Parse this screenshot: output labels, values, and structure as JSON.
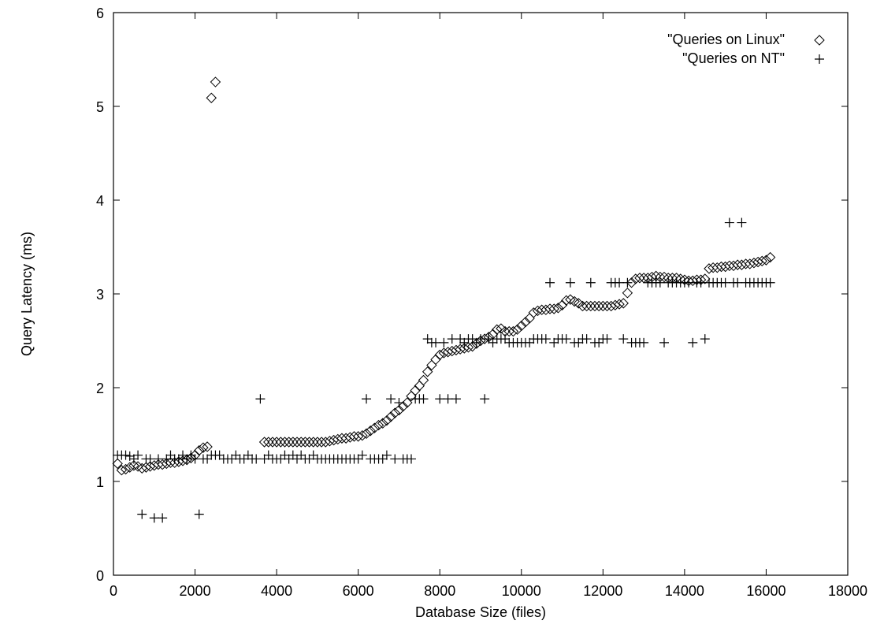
{
  "chart_data": {
    "type": "scatter",
    "xlabel": "Database Size (files)",
    "ylabel": "Query Latency (ms)",
    "xlim": [
      0,
      18000
    ],
    "ylim": [
      0,
      6
    ],
    "x_ticks": [
      "0",
      "2000",
      "4000",
      "6000",
      "8000",
      "10000",
      "12000",
      "14000",
      "16000",
      "18000"
    ],
    "y_ticks": [
      "0",
      "1",
      "2",
      "3",
      "4",
      "5",
      "6"
    ],
    "grid": false,
    "legend_position": "top-right",
    "series": [
      {
        "name": "\"Queries on Linux\"",
        "marker": "diamond",
        "color": "#000000",
        "points": [
          [
            100,
            1.19
          ],
          [
            200,
            1.12
          ],
          [
            300,
            1.13
          ],
          [
            400,
            1.15
          ],
          [
            500,
            1.17
          ],
          [
            600,
            1.16
          ],
          [
            700,
            1.14
          ],
          [
            800,
            1.15
          ],
          [
            900,
            1.16
          ],
          [
            1000,
            1.17
          ],
          [
            1100,
            1.18
          ],
          [
            1200,
            1.18
          ],
          [
            1300,
            1.19
          ],
          [
            1400,
            1.2
          ],
          [
            1500,
            1.2
          ],
          [
            1600,
            1.21
          ],
          [
            1700,
            1.22
          ],
          [
            1800,
            1.23
          ],
          [
            1900,
            1.25
          ],
          [
            2000,
            1.28
          ],
          [
            2100,
            1.33
          ],
          [
            2200,
            1.36
          ],
          [
            2300,
            1.37
          ],
          [
            2400,
            5.09
          ],
          [
            2500,
            5.26
          ],
          [
            3700,
            1.42
          ],
          [
            3800,
            1.42
          ],
          [
            3900,
            1.42
          ],
          [
            4000,
            1.42
          ],
          [
            4100,
            1.42
          ],
          [
            4200,
            1.42
          ],
          [
            4300,
            1.42
          ],
          [
            4400,
            1.42
          ],
          [
            4500,
            1.42
          ],
          [
            4600,
            1.42
          ],
          [
            4700,
            1.42
          ],
          [
            4800,
            1.42
          ],
          [
            4900,
            1.42
          ],
          [
            5000,
            1.42
          ],
          [
            5100,
            1.42
          ],
          [
            5200,
            1.42
          ],
          [
            5300,
            1.43
          ],
          [
            5400,
            1.44
          ],
          [
            5500,
            1.45
          ],
          [
            5600,
            1.46
          ],
          [
            5700,
            1.46
          ],
          [
            5800,
            1.47
          ],
          [
            5900,
            1.48
          ],
          [
            6000,
            1.48
          ],
          [
            6100,
            1.49
          ],
          [
            6200,
            1.51
          ],
          [
            6300,
            1.54
          ],
          [
            6400,
            1.57
          ],
          [
            6500,
            1.6
          ],
          [
            6600,
            1.62
          ],
          [
            6700,
            1.65
          ],
          [
            6800,
            1.69
          ],
          [
            6900,
            1.73
          ],
          [
            7000,
            1.76
          ],
          [
            7100,
            1.8
          ],
          [
            7200,
            1.84
          ],
          [
            7300,
            1.91
          ],
          [
            7400,
            1.97
          ],
          [
            7500,
            2.02
          ],
          [
            7600,
            2.08
          ],
          [
            7700,
            2.17
          ],
          [
            7800,
            2.24
          ],
          [
            7900,
            2.3
          ],
          [
            8000,
            2.35
          ],
          [
            8100,
            2.37
          ],
          [
            8200,
            2.38
          ],
          [
            8300,
            2.39
          ],
          [
            8400,
            2.4
          ],
          [
            8500,
            2.41
          ],
          [
            8600,
            2.42
          ],
          [
            8700,
            2.43
          ],
          [
            8800,
            2.44
          ],
          [
            8900,
            2.47
          ],
          [
            9000,
            2.5
          ],
          [
            9100,
            2.52
          ],
          [
            9200,
            2.54
          ],
          [
            9300,
            2.57
          ],
          [
            9400,
            2.62
          ],
          [
            9500,
            2.63
          ],
          [
            9600,
            2.6
          ],
          [
            9700,
            2.6
          ],
          [
            9800,
            2.6
          ],
          [
            9900,
            2.62
          ],
          [
            10000,
            2.66
          ],
          [
            10100,
            2.7
          ],
          [
            10200,
            2.74
          ],
          [
            10300,
            2.8
          ],
          [
            10400,
            2.82
          ],
          [
            10500,
            2.83
          ],
          [
            10600,
            2.83
          ],
          [
            10700,
            2.84
          ],
          [
            10800,
            2.84
          ],
          [
            10900,
            2.85
          ],
          [
            11000,
            2.88
          ],
          [
            11100,
            2.93
          ],
          [
            11200,
            2.94
          ],
          [
            11300,
            2.92
          ],
          [
            11400,
            2.9
          ],
          [
            11500,
            2.87
          ],
          [
            11600,
            2.87
          ],
          [
            11700,
            2.87
          ],
          [
            11800,
            2.87
          ],
          [
            11900,
            2.87
          ],
          [
            12000,
            2.87
          ],
          [
            12100,
            2.87
          ],
          [
            12200,
            2.87
          ],
          [
            12300,
            2.88
          ],
          [
            12400,
            2.89
          ],
          [
            12500,
            2.9
          ],
          [
            12600,
            3.01
          ],
          [
            12700,
            3.12
          ],
          [
            12800,
            3.16
          ],
          [
            12900,
            3.17
          ],
          [
            13000,
            3.17
          ],
          [
            13100,
            3.17
          ],
          [
            13200,
            3.18
          ],
          [
            13300,
            3.19
          ],
          [
            13400,
            3.18
          ],
          [
            13500,
            3.18
          ],
          [
            13600,
            3.17
          ],
          [
            13700,
            3.17
          ],
          [
            13800,
            3.17
          ],
          [
            13900,
            3.16
          ],
          [
            14000,
            3.15
          ],
          [
            14100,
            3.14
          ],
          [
            14200,
            3.14
          ],
          [
            14300,
            3.15
          ],
          [
            14400,
            3.15
          ],
          [
            14500,
            3.16
          ],
          [
            14600,
            3.27
          ],
          [
            14700,
            3.28
          ],
          [
            14800,
            3.28
          ],
          [
            14900,
            3.29
          ],
          [
            15000,
            3.29
          ],
          [
            15100,
            3.3
          ],
          [
            15200,
            3.3
          ],
          [
            15300,
            3.31
          ],
          [
            15400,
            3.31
          ],
          [
            15500,
            3.32
          ],
          [
            15600,
            3.32
          ],
          [
            15700,
            3.33
          ],
          [
            15800,
            3.34
          ],
          [
            15900,
            3.35
          ],
          [
            16000,
            3.36
          ],
          [
            16100,
            3.39
          ]
        ]
      },
      {
        "name": "\"Queries on NT\"",
        "marker": "plus",
        "color": "#000000",
        "points": [
          [
            100,
            1.28
          ],
          [
            200,
            1.28
          ],
          [
            300,
            1.28
          ],
          [
            400,
            1.27
          ],
          [
            500,
            1.24
          ],
          [
            600,
            1.28
          ],
          [
            700,
            0.65
          ],
          [
            800,
            1.24
          ],
          [
            900,
            1.24
          ],
          [
            1000,
            0.61
          ],
          [
            1100,
            1.24
          ],
          [
            1200,
            0.61
          ],
          [
            1300,
            1.24
          ],
          [
            1400,
            1.28
          ],
          [
            1500,
            1.24
          ],
          [
            1600,
            1.24
          ],
          [
            1700,
            1.28
          ],
          [
            1800,
            1.24
          ],
          [
            1900,
            1.28
          ],
          [
            2000,
            1.24
          ],
          [
            2100,
            0.65
          ],
          [
            2200,
            1.24
          ],
          [
            2300,
            1.24
          ],
          [
            2400,
            1.28
          ],
          [
            2500,
            1.28
          ],
          [
            2600,
            1.28
          ],
          [
            2700,
            1.24
          ],
          [
            2800,
            1.24
          ],
          [
            2900,
            1.24
          ],
          [
            3000,
            1.28
          ],
          [
            3100,
            1.24
          ],
          [
            3200,
            1.24
          ],
          [
            3300,
            1.28
          ],
          [
            3400,
            1.24
          ],
          [
            3500,
            1.24
          ],
          [
            3600,
            1.88
          ],
          [
            3700,
            1.24
          ],
          [
            3800,
            1.28
          ],
          [
            3900,
            1.24
          ],
          [
            4000,
            1.24
          ],
          [
            4100,
            1.24
          ],
          [
            4200,
            1.28
          ],
          [
            4300,
            1.24
          ],
          [
            4400,
            1.28
          ],
          [
            4500,
            1.24
          ],
          [
            4600,
            1.28
          ],
          [
            4700,
            1.24
          ],
          [
            4800,
            1.24
          ],
          [
            4900,
            1.28
          ],
          [
            5000,
            1.24
          ],
          [
            5100,
            1.24
          ],
          [
            5200,
            1.24
          ],
          [
            5300,
            1.24
          ],
          [
            5400,
            1.24
          ],
          [
            5500,
            1.24
          ],
          [
            5600,
            1.24
          ],
          [
            5700,
            1.24
          ],
          [
            5800,
            1.24
          ],
          [
            5900,
            1.24
          ],
          [
            6000,
            1.24
          ],
          [
            6100,
            1.28
          ],
          [
            6200,
            1.88
          ],
          [
            6300,
            1.24
          ],
          [
            6400,
            1.24
          ],
          [
            6500,
            1.24
          ],
          [
            6600,
            1.24
          ],
          [
            6700,
            1.28
          ],
          [
            6800,
            1.88
          ],
          [
            6900,
            1.24
          ],
          [
            7000,
            1.84
          ],
          [
            7100,
            1.24
          ],
          [
            7200,
            1.24
          ],
          [
            7300,
            1.24
          ],
          [
            7400,
            1.88
          ],
          [
            7500,
            1.88
          ],
          [
            7600,
            1.88
          ],
          [
            7700,
            2.52
          ],
          [
            7800,
            2.48
          ],
          [
            7900,
            2.48
          ],
          [
            8000,
            1.88
          ],
          [
            8100,
            2.48
          ],
          [
            8200,
            1.88
          ],
          [
            8300,
            2.52
          ],
          [
            8400,
            1.88
          ],
          [
            8500,
            2.52
          ],
          [
            8600,
            2.48
          ],
          [
            8700,
            2.52
          ],
          [
            8800,
            2.52
          ],
          [
            8900,
            2.48
          ],
          [
            9000,
            2.52
          ],
          [
            9100,
            1.88
          ],
          [
            9200,
            2.52
          ],
          [
            9300,
            2.48
          ],
          [
            9400,
            2.52
          ],
          [
            9500,
            2.52
          ],
          [
            9600,
            2.52
          ],
          [
            9700,
            2.48
          ],
          [
            9800,
            2.48
          ],
          [
            9900,
            2.48
          ],
          [
            10000,
            2.48
          ],
          [
            10100,
            2.48
          ],
          [
            10200,
            2.48
          ],
          [
            10300,
            2.52
          ],
          [
            10400,
            2.52
          ],
          [
            10500,
            2.52
          ],
          [
            10600,
            2.52
          ],
          [
            10700,
            3.12
          ],
          [
            10800,
            2.48
          ],
          [
            10900,
            2.52
          ],
          [
            11000,
            2.52
          ],
          [
            11100,
            2.52
          ],
          [
            11200,
            3.12
          ],
          [
            11300,
            2.48
          ],
          [
            11400,
            2.48
          ],
          [
            11500,
            2.52
          ],
          [
            11600,
            2.52
          ],
          [
            11700,
            3.12
          ],
          [
            11800,
            2.48
          ],
          [
            11900,
            2.48
          ],
          [
            12000,
            2.52
          ],
          [
            12100,
            2.52
          ],
          [
            12200,
            3.12
          ],
          [
            12300,
            3.12
          ],
          [
            12400,
            3.12
          ],
          [
            12500,
            2.52
          ],
          [
            12600,
            3.12
          ],
          [
            12700,
            2.48
          ],
          [
            12800,
            2.48
          ],
          [
            12900,
            2.48
          ],
          [
            13000,
            2.48
          ],
          [
            13100,
            3.12
          ],
          [
            13200,
            3.12
          ],
          [
            13300,
            3.12
          ],
          [
            13400,
            3.12
          ],
          [
            13500,
            2.48
          ],
          [
            13600,
            3.12
          ],
          [
            13700,
            3.12
          ],
          [
            13800,
            3.12
          ],
          [
            13900,
            3.12
          ],
          [
            14000,
            3.12
          ],
          [
            14100,
            3.12
          ],
          [
            14200,
            2.48
          ],
          [
            14300,
            3.12
          ],
          [
            14400,
            3.12
          ],
          [
            14500,
            2.52
          ],
          [
            14600,
            3.12
          ],
          [
            14700,
            3.12
          ],
          [
            14800,
            3.12
          ],
          [
            14900,
            3.12
          ],
          [
            15000,
            3.12
          ],
          [
            15100,
            3.76
          ],
          [
            15200,
            3.12
          ],
          [
            15300,
            3.12
          ],
          [
            15400,
            3.76
          ],
          [
            15500,
            3.12
          ],
          [
            15600,
            3.12
          ],
          [
            15700,
            3.12
          ],
          [
            15800,
            3.12
          ],
          [
            15900,
            3.12
          ],
          [
            16000,
            3.12
          ],
          [
            16100,
            3.12
          ]
        ]
      }
    ]
  }
}
